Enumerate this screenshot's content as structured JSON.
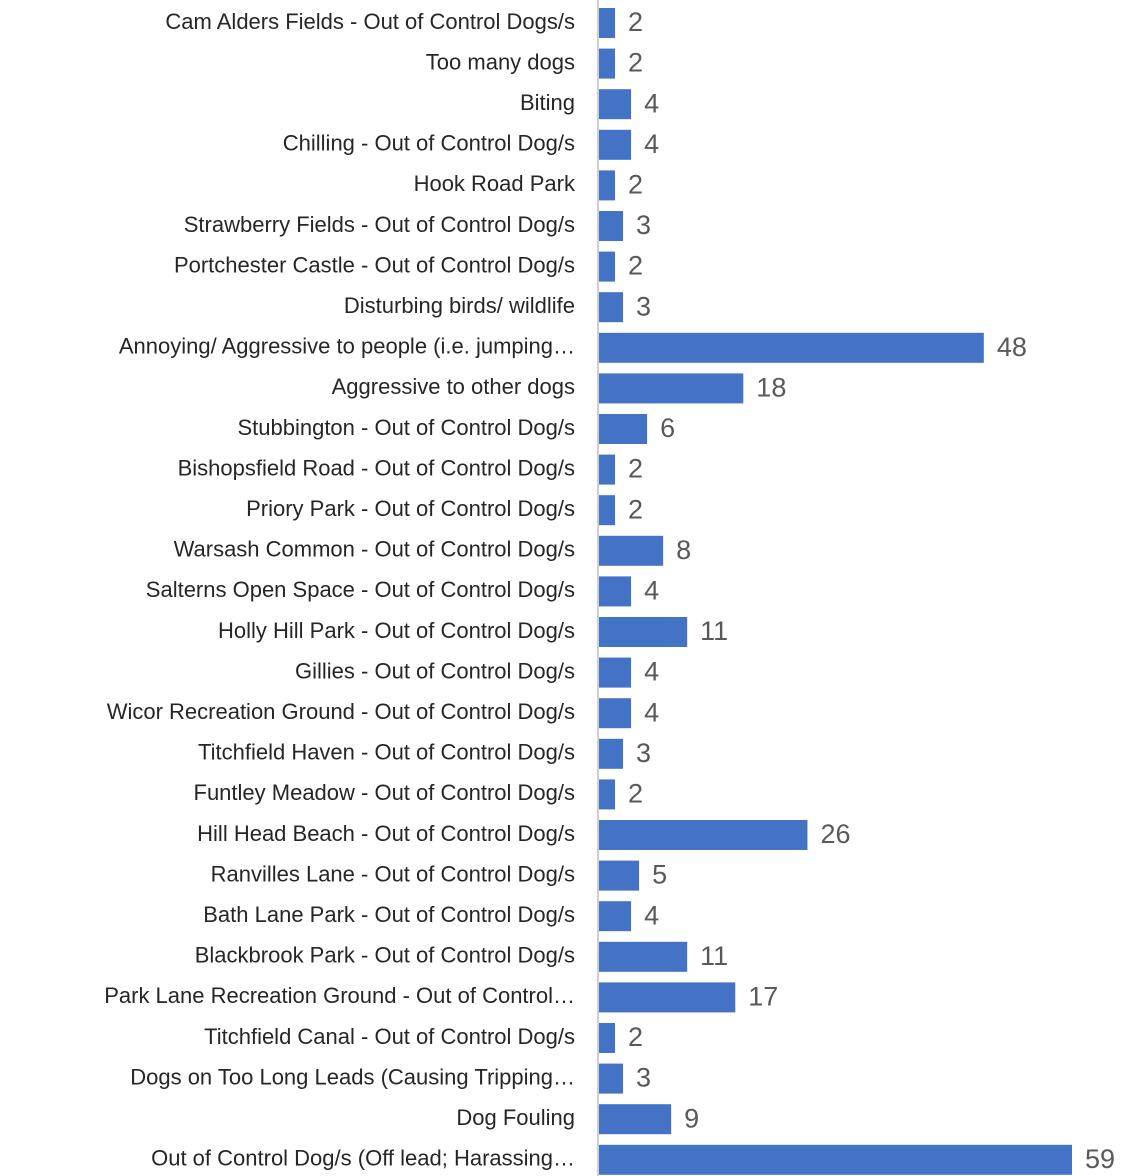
{
  "chart_data": {
    "type": "barh",
    "categories": [
      "Cam Alders Fields - Out of Control Dogs/s",
      "Too many dogs",
      "Biting",
      "Chilling - Out of Control Dog/s",
      "Hook Road Park",
      "Strawberry Fields - Out of Control Dog/s",
      "Portchester Castle - Out of Control Dog/s",
      "Disturbing birds/ wildlife",
      "Annoying/ Aggressive to people (i.e. jumping…",
      "Aggressive to other dogs",
      "Stubbington - Out of Control Dog/s",
      "Bishopsfield Road - Out of Control Dog/s",
      "Priory Park - Out of Control Dog/s",
      "Warsash Common - Out of Control Dog/s",
      "Salterns Open Space - Out of Control Dog/s",
      "Holly Hill Park - Out of Control Dog/s",
      "Gillies - Out of Control Dog/s",
      "Wicor Recreation Ground - Out of Control Dog/s",
      "Titchfield Haven - Out of Control Dog/s",
      "Funtley Meadow - Out of Control Dog/s",
      "Hill Head Beach - Out of Control Dog/s",
      "Ranvilles Lane - Out of Control Dog/s",
      "Bath Lane Park - Out of Control Dog/s",
      "Blackbrook Park - Out of Control Dog/s",
      "Park Lane Recreation Ground - Out of Control…",
      "Titchfield Canal - Out of Control Dog/s",
      "Dogs on Too Long Leads (Causing Tripping…",
      "Dog Fouling",
      "Out of Control Dog/s (Off lead; Harassing…"
    ],
    "values": [
      2,
      2,
      4,
      4,
      2,
      3,
      2,
      3,
      48,
      18,
      6,
      2,
      2,
      8,
      4,
      11,
      4,
      4,
      3,
      2,
      26,
      5,
      4,
      11,
      17,
      2,
      3,
      9,
      59
    ],
    "color": "#4472c4"
  }
}
